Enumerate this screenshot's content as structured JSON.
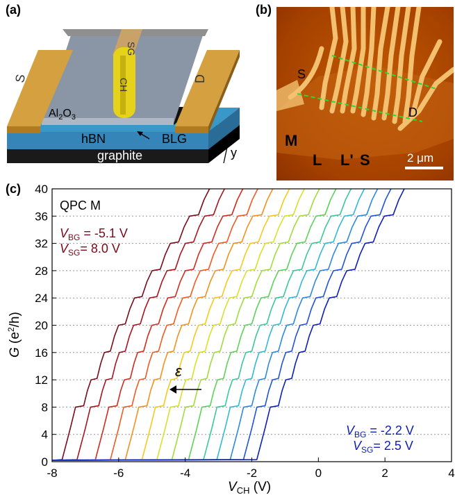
{
  "panel_a": {
    "label": "(a)",
    "text": {
      "sg": "SG",
      "ch": "CH",
      "s": "S",
      "d": "D",
      "al2o3_main": "Al",
      "al2o3_sub2": "2",
      "al2o3_o": "O",
      "al2o3_sub3": "3",
      "hbn": "hBN",
      "blg": "BLG",
      "graphite": "graphite",
      "y": "y"
    },
    "colors": {
      "gold": "#d4a040",
      "gold_dark": "#b07a20",
      "gate": "#e6d21a",
      "gray": "#8a96a6",
      "hbn": "#3a98c8",
      "graphite": "#222222"
    }
  },
  "panel_b": {
    "label": "(b)",
    "text": {
      "s": "S",
      "d": "D",
      "m": "M",
      "l": "L",
      "lp": "L'",
      "s2": "S",
      "scale": "2 μm"
    },
    "colors": {
      "bg": "#a84400",
      "electrode": "#f3c070",
      "dash": "#22dd33"
    }
  },
  "chart_data": {
    "type": "line",
    "panel_label": "(c)",
    "annotation_top": "QPC M",
    "xlabel_main": "V",
    "xlabel_sub": "CH",
    "xlabel_unit": " (V)",
    "ylabel_main": "G",
    "ylabel_unit": " (e",
    "ylabel_sup": "2",
    "ylabel_end": "/h)",
    "xlim": [
      -8,
      4
    ],
    "ylim": [
      0,
      40
    ],
    "xticks": [
      -8,
      -6,
      -4,
      -2,
      0,
      2,
      4
    ],
    "yticks": [
      0,
      4,
      8,
      12,
      16,
      20,
      24,
      28,
      32,
      36,
      40
    ],
    "grid": "horizontal dotted",
    "epsilon_label": "ε",
    "first_curve_label": {
      "vbg_main": "V",
      "vbg_sub": "BG",
      "vbg_val": " = -5.1 V",
      "vsg_main": "V",
      "vsg_sub": "SG",
      "vsg_val": "= 8.0 V"
    },
    "last_curve_label": {
      "vbg_main": "V",
      "vbg_sub": "BG",
      "vbg_val": " = -2.2 V",
      "vsg_main": "V",
      "vsg_sub": "SG",
      "vsg_val": "= 2.5 V"
    },
    "series": [
      {
        "color": "#7a0a1a",
        "threshold": -7.6
      },
      {
        "color": "#a8141e",
        "threshold": -7.15
      },
      {
        "color": "#d02a1e",
        "threshold": -6.6
      },
      {
        "color": "#f05a1e",
        "threshold": -6.15
      },
      {
        "color": "#f5901c",
        "threshold": -5.7
      },
      {
        "color": "#f7c81c",
        "threshold": -5.2
      },
      {
        "color": "#d8e02a",
        "threshold": -4.75
      },
      {
        "color": "#a0dc3a",
        "threshold": -4.3
      },
      {
        "color": "#5ad25a",
        "threshold": -3.8
      },
      {
        "color": "#38c89a",
        "threshold": -3.35
      },
      {
        "color": "#30b8d8",
        "threshold": -2.95
      },
      {
        "color": "#2a88e0",
        "threshold": -2.55
      },
      {
        "color": "#1e52d8",
        "threshold": -2.15
      },
      {
        "color": "#0c1eb8",
        "threshold": -1.75
      }
    ],
    "step_shape": {
      "plateau_g": [
        0.4,
        8,
        12,
        16,
        20,
        24,
        28,
        32,
        36,
        40
      ],
      "plateau_end_offset_v": [
        0,
        0.55,
        0.95,
        1.35,
        1.8,
        2.3,
        2.85,
        3.4,
        4.0,
        4.6
      ]
    }
  }
}
